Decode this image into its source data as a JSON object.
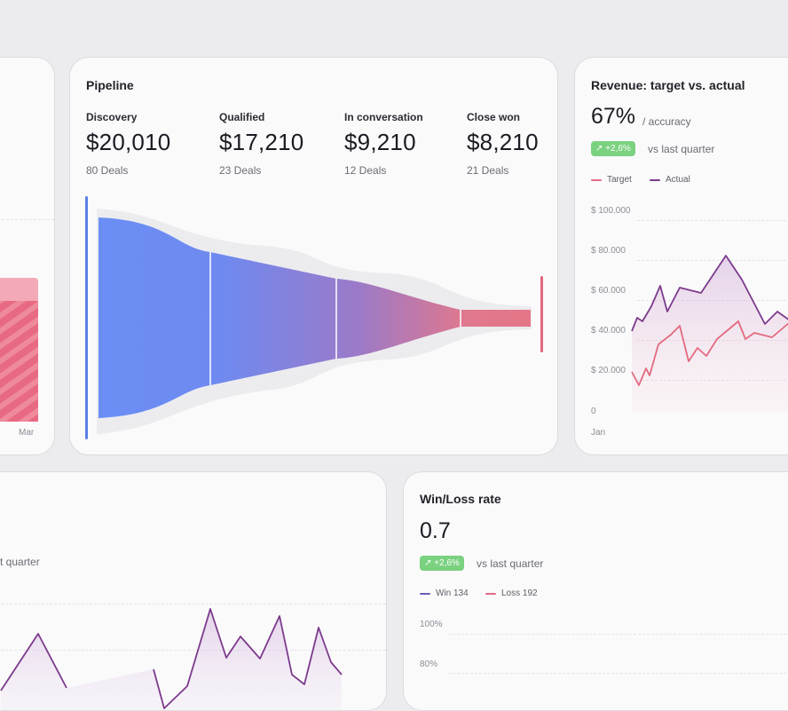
{
  "colors": {
    "blue": "#6b8ff5",
    "purple": "#7c3a8c",
    "pink": "#e36a80",
    "green_badge": "#7ad17f"
  },
  "left_card": {
    "axis_label": "Mar"
  },
  "pipeline": {
    "title": "Pipeline",
    "stages": [
      {
        "label": "Discovery",
        "value": "$20,010",
        "deals": "80 Deals"
      },
      {
        "label": "Qualified",
        "value": "$17,210",
        "deals": "23 Deals"
      },
      {
        "label": "In conversation",
        "value": "$9,210",
        "deals": "12 Deals"
      },
      {
        "label": "Close won",
        "value": "$8,210",
        "deals": "21 Deals"
      }
    ]
  },
  "revenue": {
    "title": "Revenue: target vs. actual",
    "big_value": "67%",
    "big_suffix": "/ accuracy",
    "badge": "+2,6%",
    "badge_icon": "trend-up-icon",
    "compare_text": "vs last quarter",
    "legend": [
      {
        "name": "Target"
      },
      {
        "name": "Actual"
      }
    ],
    "y_ticks": [
      "$ 100.000",
      "$ 80.000",
      "$ 60.000",
      "$ 40.000",
      "$ 20.000",
      "0"
    ],
    "x_first_label": "Jan"
  },
  "bottom_left": {
    "partial_text": "t quarter"
  },
  "winloss": {
    "title": "Win/Loss rate",
    "big_value": "0.7",
    "badge": "+2,6%",
    "badge_icon": "trend-up-icon",
    "compare_text": "vs last quarter",
    "legend": [
      {
        "name": "Win 134"
      },
      {
        "name": "Loss 192"
      }
    ],
    "y_ticks": [
      "100%",
      "80%"
    ]
  }
}
